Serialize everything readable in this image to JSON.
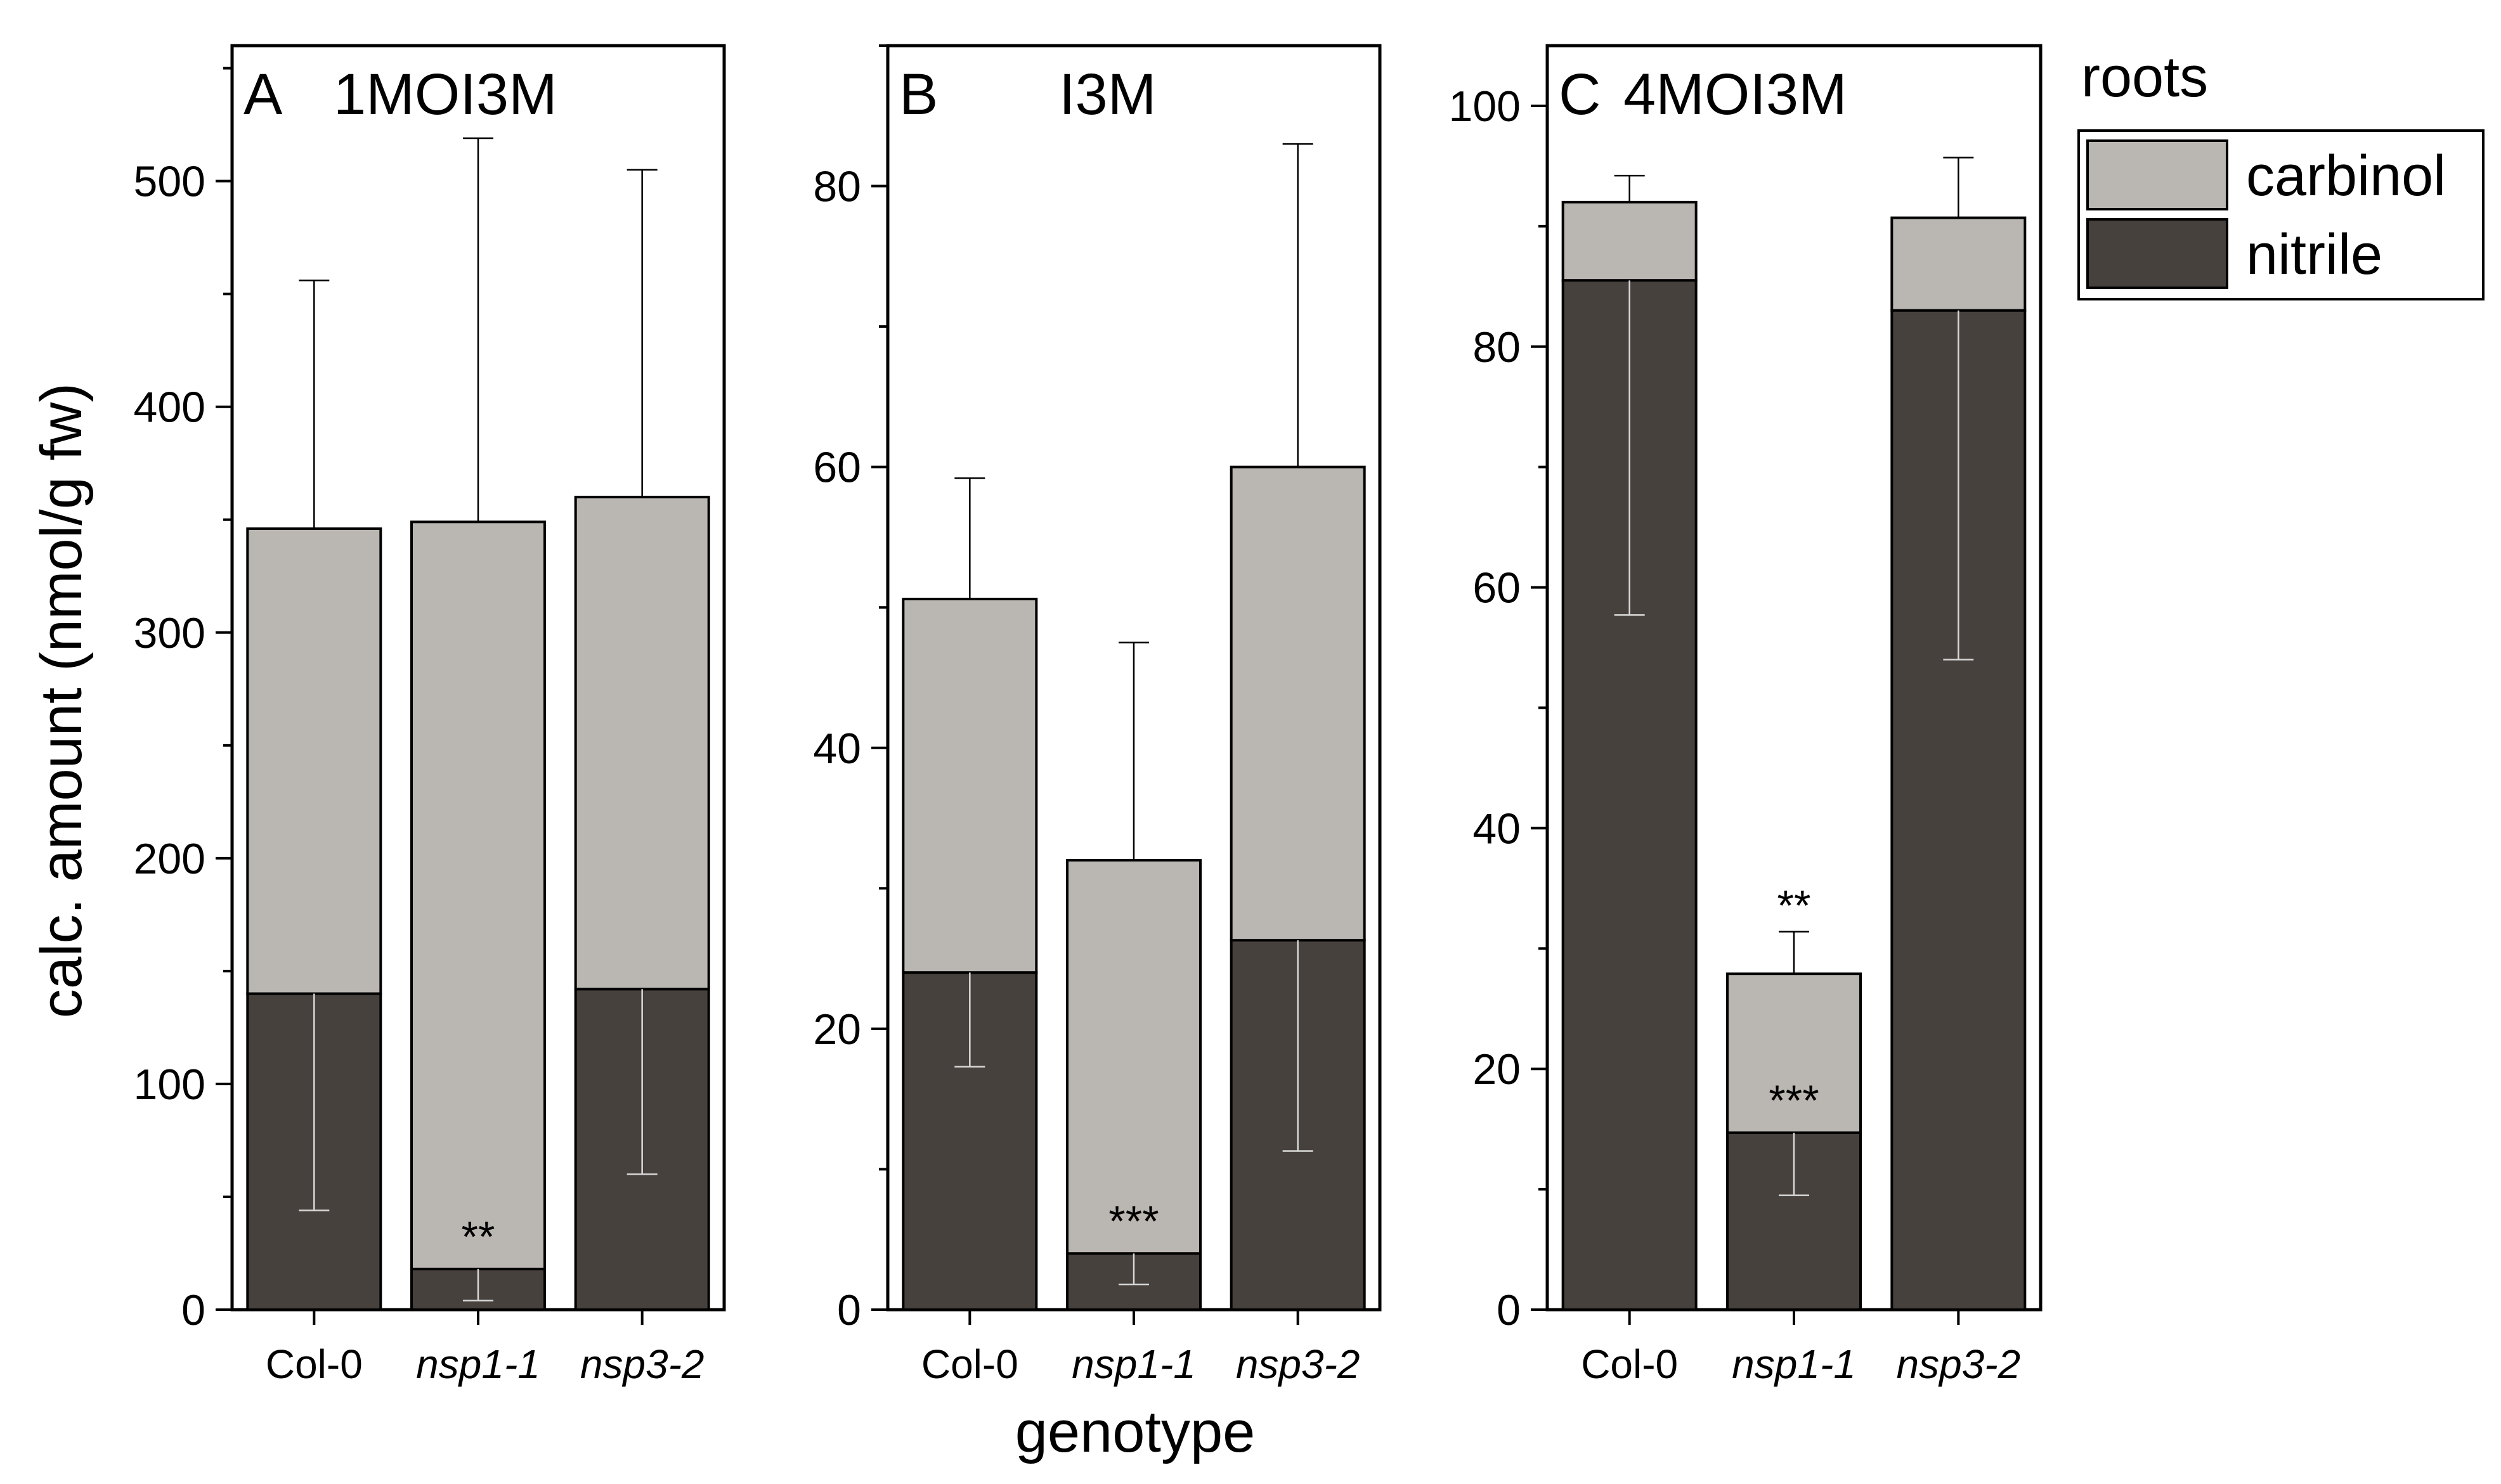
{
  "colors": {
    "carbinol": "#bab6b2",
    "nitrile": "#46413d",
    "frame": "#000000",
    "errorbar_on_dark": "#d8d8d8",
    "errorbar_on_light": "#000000"
  },
  "chart_data": [
    {
      "type": "bar",
      "stacked": true,
      "panel_letter": "A",
      "title": "1MOI3M",
      "categories": [
        "Col-0",
        "nsp1-1",
        "nsp3-2"
      ],
      "categories_italic": [
        false,
        true,
        true
      ],
      "series": [
        {
          "name": "nitrile",
          "values": [
            140,
            18,
            142
          ],
          "err": [
            96,
            14,
            82
          ]
        },
        {
          "name": "carbinol",
          "values": [
            206,
            331,
            218
          ],
          "err": [
            110,
            170,
            145
          ]
        }
      ],
      "significance": [
        {
          "category": "nsp1-1",
          "series": "nitrile",
          "label": "**"
        }
      ],
      "ylim": [
        0,
        560
      ],
      "yticks": [
        0,
        100,
        200,
        300,
        400,
        500
      ],
      "ylabel": "calc. amount (nmol/g fw)",
      "xlabel": ""
    },
    {
      "type": "bar",
      "stacked": true,
      "panel_letter": "B",
      "title": "I3M",
      "categories": [
        "Col-0",
        "nsp1-1",
        "nsp3-2"
      ],
      "categories_italic": [
        false,
        true,
        true
      ],
      "series": [
        {
          "name": "nitrile",
          "values": [
            24,
            4,
            26.3
          ],
          "err": [
            6.7,
            2.2,
            15
          ]
        },
        {
          "name": "carbinol",
          "values": [
            26.6,
            28,
            33.7
          ],
          "err": [
            8.6,
            15.5,
            23
          ]
        }
      ],
      "significance": [
        {
          "category": "nsp1-1",
          "series": "nitrile",
          "label": "***"
        }
      ],
      "ylim": [
        0,
        90
      ],
      "yticks": [
        0,
        20,
        40,
        60,
        80
      ],
      "ylabel": "",
      "xlabel": "genotype"
    },
    {
      "type": "bar",
      "stacked": true,
      "panel_letter": "C",
      "title": "4MOI3M",
      "categories": [
        "Col-0",
        "nsp1-1",
        "nsp3-2"
      ],
      "categories_italic": [
        false,
        true,
        true
      ],
      "series": [
        {
          "name": "nitrile",
          "values": [
            85.5,
            14.7,
            83
          ],
          "err": [
            27.8,
            5.2,
            29
          ]
        },
        {
          "name": "carbinol",
          "values": [
            6.5,
            13.2,
            7.7
          ],
          "err": [
            2.2,
            3.5,
            5
          ]
        }
      ],
      "significance": [
        {
          "category": "nsp1-1",
          "series": "nitrile",
          "label": "***"
        },
        {
          "category": "nsp1-1",
          "series": "carbinol",
          "label": "**"
        }
      ],
      "ylim": [
        0,
        105
      ],
      "yticks": [
        0,
        20,
        40,
        60,
        80,
        100
      ],
      "ylabel": "",
      "xlabel": ""
    }
  ],
  "legend": {
    "title": "roots",
    "items": [
      {
        "label": "carbinol",
        "color": "#bab6b2"
      },
      {
        "label": "nitrile",
        "color": "#46413d"
      }
    ]
  }
}
